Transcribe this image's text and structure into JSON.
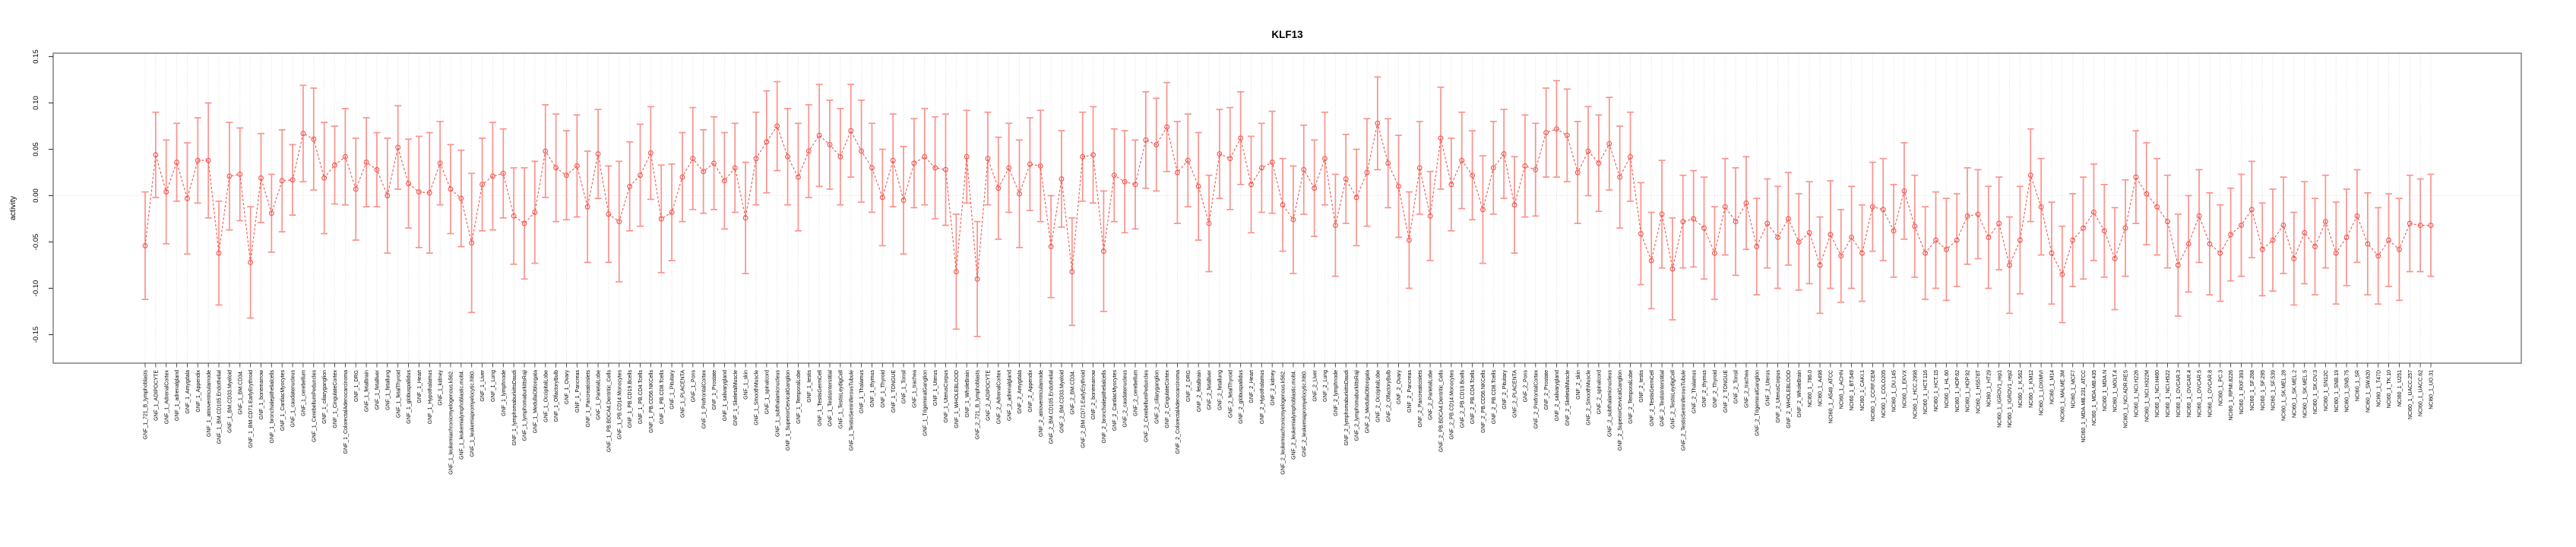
{
  "title": "KLF13",
  "colors": {
    "series": "#f0544c",
    "errorbar": "#fa938c",
    "grid": "#dcdcdc",
    "axis": "#808080",
    "tick": "#404040",
    "text": "#000000"
  },
  "chart_data": {
    "type": "line",
    "title": "KLF13",
    "xlabel": "",
    "ylabel": "activity",
    "ylim": [
      -0.185,
      0.153
    ],
    "ytick_labels": [
      "0.15",
      "0.10",
      "0.05",
      "0.00",
      "-0.05",
      "-0.10",
      "-0.15"
    ],
    "ytick_values": [
      0.15,
      0.1,
      0.05,
      0.0,
      -0.05,
      -0.1,
      -0.15
    ],
    "grid": "vertical dotted gridline at every category; horizontal dotted line at y=0",
    "legend_position": "none",
    "marker": "open-circle",
    "line_style": "dashed",
    "error_bars": true,
    "categories": [
      "GNF_1_721_B_lymphoblasts",
      "GNF_1_ADIPOCYTE",
      "GNF_1_AdrenalCortex",
      "GNF_1_adrenalgland",
      "GNF_1_Amygdala",
      "GNF_1_Appendix",
      "GNF_1_atrioventricularnode",
      "GNF_1_BM.CD105.Endothelial",
      "GNF_1_BM.CD33.Myeloid",
      "GNF_1_BM.CD34.",
      "GNF_1_BM.CD71.EarlyErythroid",
      "GNF_1_bonemarrow",
      "GNF_1_bronchialepithelialcells",
      "GNF_1_CardiacMyocytes",
      "GNF_1_caudatenucleus",
      "GNF_1_cerebellum",
      "GNF_1_CerebellumPeduncles",
      "GNF_1_ciliaryganglion",
      "GNF_1_CingulateCortex",
      "GNF_1_ColorectalAdenocarcinoma",
      "GNF_1_DRG",
      "GNF_1_fetalbrain",
      "GNF_1_fetalliver",
      "GNF_1_fetallung",
      "GNF_1_fetalThyroid",
      "GNF_1_globuspallidus",
      "GNF_1_Heart",
      "GNF_1_Hypothalamus",
      "GNF_1_kidney",
      "GNF_1_leukemiachronicmyelogenous.k562.",
      "GNF_1_leukemialymphoblastic.molt4.",
      "GNF_1_leukemiapromyelocytic.hl60.",
      "GNF_1_Liver",
      "GNF_1_Lung",
      "GNF_1_lymphnode",
      "GNF_1_lymphomaburkittsDaudi",
      "GNF_1_lymphomaburkittsRaji",
      "GNF_1_MedullaOblongata",
      "GNF_1_OccipitalLobe",
      "GNF_1_OlfactoryBulb",
      "GNF_1_Ovary",
      "GNF_1_Pancreas",
      "GNF_1_Pancreaticislets",
      "GNF_1_ParietalLobe",
      "GNF_1_PB.BDCA4.Dentritic_Cells",
      "GNF_1_PB.CD14.Monocytes",
      "GNF_1_PB.CD19.Bcells",
      "GNF_1_PB.CD4.Tcells",
      "GNF_1_PB.CD56.NKCells",
      "GNF_1_PB.CD8.Tcells",
      "GNF_1_Pituitary",
      "GNF_1_PLACENTA",
      "GNF_1_Pons",
      "GNF_1_PrefrontalCortex",
      "GNF_1_Prostate",
      "GNF_1_salivarygland",
      "GNF_1_SkeletalMuscle",
      "GNF_1_skin",
      "GNF_1_SmoothMuscle",
      "GNF_1_spinalcord",
      "GNF_1_subthalamicnucleus",
      "GNF_1_SuperiorCervicalGanglion",
      "GNF_1_TemporalLobe",
      "GNF_1_testis",
      "GNF_1_TestisGermCell",
      "GNF_1_TestisInterstitial",
      "GNF_1_TestisLeydigCell",
      "GNF_1_TestisSeminiferousTubule",
      "GNF_1_Thalamus",
      "GNF_1_thymus",
      "GNF_1_Thyroid",
      "GNF_1_TONGUE",
      "GNF_1_Tonsil",
      "GNF_1_trachea",
      "GNF_1_TrigeminalGanglion",
      "GNF_1_Uterus",
      "GNF_1_UterusCorpus",
      "GNF_1_WHOLEBLOOD",
      "GNF_1_WholeBrain",
      "GNF_2_721_B_lymphoblasts",
      "GNF_2_ADIPOCYTE",
      "GNF_2_AdrenalCortex",
      "GNF_2_adrenalgland",
      "GNF_2_Amygdala",
      "GNF_2_Appendix",
      "GNF_2_atrioventricularnode",
      "GNF_2_BM.CD105.Endothelial",
      "GNF_2_BM.CD33.Myeloid",
      "GNF_2_BM.CD34.",
      "GNF_2_BM.CD71.EarlyErythroid",
      "GNF_2_bonemarrow",
      "GNF_2_bronchialepithelialcells",
      "GNF_2_CardiacMyocytes",
      "GNF_2_caudatenucleus",
      "GNF_2_cerebellum",
      "GNF_2_CerebellumPeduncles",
      "GNF_2_ciliaryganglion",
      "GNF_2_CingulateCortex",
      "GNF_2_ColorectalAdenocarcinoma",
      "GNF_2_DRG",
      "GNF_2_fetalbrain",
      "GNF_2_fetalliver",
      "GNF_2_fetallung",
      "GNF_2_fetalThyroid",
      "GNF_2_globuspallidus",
      "GNF_2_Heart",
      "GNF_2_Hypothalamus",
      "GNF_2_kidney",
      "GNF_2_leukemiachronicmyelogenous.k562.",
      "GNF_2_leukemialymphoblastic.molt4.",
      "GNF_2_leukemiapromyelocytic.hl60.",
      "GNF_2_Liver",
      "GNF_2_Lung",
      "GNF_2_lymphnode",
      "GNF_2_lymphomaburkittsDaudi",
      "GNF_2_lymphomaburkittsRaji",
      "GNF_2_MedullaOblongata",
      "GNF_2_OccipitalLobe",
      "GNF_2_OlfactoryBulb",
      "GNF_2_Ovary",
      "GNF_2_Pancreas",
      "GNF_2_Pancreaticislets",
      "GNF_2_ParietalLobe",
      "GNF_2_PB.BDCA4.Dentritic_Cells",
      "GNF_2_PB.CD14.Monocytes",
      "GNF_2_PB.CD19.Bcells",
      "GNF_2_PB.CD4.Tcells",
      "GNF_2_PB.CD56.NKCells",
      "GNF_2_PB.CD8.Tcells",
      "GNF_2_Pituitary",
      "GNF_2_PLACENTA",
      "GNF_2_Pons",
      "GNF_2_PrefrontalCortex",
      "GNF_2_Prostate",
      "GNF_2_salivarygland",
      "GNF_2_SkeletalMuscle",
      "GNF_2_skin",
      "GNF_2_SmoothMuscle",
      "GNF_2_spinalcord",
      "GNF_2_subthalamicnucleus",
      "GNF_2_SuperiorCervicalGanglion",
      "GNF_2_TemporalLobe",
      "GNF_2_testis",
      "GNF_2_TestisGermCell",
      "GNF_2_TestisInterstitial",
      "GNF_2_TestisLeydigCell",
      "GNF_2_TestisSeminiferousTubule",
      "GNF_2_Thalamus",
      "GNF_2_thymus",
      "GNF_2_Thyroid",
      "GNF_2_TONGUE",
      "GNF_2_Tonsil",
      "GNF_2_trachea",
      "GNF_2_TrigeminalGanglion",
      "GNF_2_Uterus",
      "GNF_2_UterusCorpus",
      "GNF_2_WHOLEBLOOD",
      "GNF_2_WholeBrain",
      "NCI60_1_786.0",
      "NCI60_1_A498",
      "NCI60_1_A549_ATCC",
      "NCI60_1_ACHN",
      "NCI60_1_BT.549",
      "NCI60_1_CAKI.1",
      "NCI60_1_CCRF.CEM",
      "NCI60_1_COLO205",
      "NCI60_1_DU.145",
      "NCI60_1_EKVX",
      "NCI60_1_HCC.2998",
      "NCI60_1_HCT.116",
      "NCI60_1_HCT.15",
      "NCI60_1_HL.60",
      "NCI60_1_HOP.62",
      "NCI60_1_HOP.92",
      "NCI60_1_HS578T",
      "NCI60_1_HT29",
      "NCI60_1_IGROV1_rep1",
      "NCI60_1_IGROV1_rep2",
      "NCI60_1_K.562",
      "NCI60_1_KM12",
      "NCI60_1_LOXIMVI",
      "NCI60_1_M14",
      "NCI60_1_MALME.3M",
      "NCI60_1_MCF7",
      "NCI60_1_MDA.MB.231_ATCC",
      "NCI60_1_MDA.MB.435",
      "NCI60_1_MDA.N",
      "NCI60_1_MOLT.4",
      "NCI60_1_NCI.ADR.RES",
      "NCI60_1_NCI.H226",
      "NCI60_1_NCI.H322M",
      "NCI60_1_NCI.H460",
      "NCI60_1_NCI.H522",
      "NCI60_1_OVCAR.3",
      "NCI60_1_OVCAR.4",
      "NCI60_1_OVCAR.5",
      "NCI60_1_OVCAR.8",
      "NCI60_1_PC.3",
      "NCI60_1_RPMI.8226",
      "NCI60_1_RXF.393",
      "NCI60_1_SF.268",
      "NCI60_1_SF.295",
      "NCI60_1_SF.539",
      "NCI60_1_SK.MEL.28",
      "NCI60_1_SK.MEL.2",
      "NCI60_1_SK.MEL.5",
      "NCI60_1_SK.OV.3",
      "NCI60_1_SN12C",
      "NCI60_1_SNB.19",
      "NCI60_1_SNB.75",
      "NCI60_1_SR",
      "NCI60_1_SW.620",
      "NCI60_1_T47D",
      "NCI60_1_TK.10",
      "NCI60_1_U251",
      "NCI60_1_UACC.257",
      "NCI60_1_UACC.62",
      "NCI60_1_UO.31"
    ],
    "values": [
      -0.054,
      0.044,
      0.004,
      0.036,
      -0.003,
      0.038,
      0.038,
      -0.062,
      0.021,
      0.023,
      -0.072,
      0.019,
      -0.019,
      0.016,
      0.017,
      0.067,
      0.061,
      0.019,
      0.033,
      0.042,
      0.007,
      0.036,
      0.028,
      0.0,
      0.052,
      0.013,
      0.004,
      0.003,
      0.035,
      0.007,
      -0.003,
      -0.051,
      0.012,
      0.021,
      0.024,
      -0.022,
      -0.03,
      -0.018,
      0.048,
      0.03,
      0.022,
      0.032,
      -0.012,
      0.045,
      -0.02,
      -0.028,
      0.01,
      0.022,
      0.046,
      -0.025,
      -0.018,
      0.02,
      0.04,
      0.026,
      0.035,
      0.016,
      0.03,
      -0.024,
      0.04,
      0.058,
      0.075,
      0.042,
      0.02,
      0.048,
      0.065,
      0.055,
      0.042,
      0.07,
      0.048,
      0.03,
      -0.002,
      0.038,
      -0.005,
      0.035,
      0.042,
      0.03,
      0.028,
      -0.082,
      0.042,
      -0.09,
      0.04,
      0.008,
      0.03,
      0.002,
      0.034,
      0.032,
      -0.055,
      0.018,
      -0.082,
      0.042,
      0.044,
      -0.06,
      0.022,
      0.015,
      0.012,
      0.06,
      0.055,
      0.074,
      0.025,
      0.038,
      0.01,
      -0.03,
      0.045,
      0.04,
      0.062,
      0.012,
      0.03,
      0.036,
      -0.01,
      -0.026,
      0.028,
      0.008,
      0.04,
      -0.032,
      0.018,
      -0.002,
      0.025,
      0.078,
      0.035,
      0.01,
      -0.048,
      0.03,
      -0.022,
      0.062,
      0.012,
      0.038,
      0.022,
      -0.015,
      0.03,
      0.045,
      -0.01,
      0.032,
      0.028,
      0.068,
      0.072,
      0.065,
      0.025,
      0.048,
      0.035,
      0.056,
      0.02,
      0.042,
      -0.041,
      -0.07,
      -0.02,
      -0.079,
      -0.028,
      -0.025,
      -0.035,
      -0.062,
      -0.012,
      -0.028,
      -0.008,
      -0.055,
      -0.03,
      -0.045,
      -0.025,
      -0.05,
      -0.04,
      -0.075,
      -0.042,
      -0.065,
      -0.045,
      -0.062,
      -0.012,
      -0.015,
      -0.038,
      0.005,
      -0.033,
      -0.062,
      -0.048,
      -0.058,
      -0.048,
      -0.022,
      -0.02,
      -0.045,
      -0.03,
      -0.075,
      -0.048,
      0.022,
      -0.012,
      -0.062,
      -0.085,
      -0.048,
      -0.035,
      -0.018,
      -0.038,
      -0.068,
      -0.035,
      0.02,
      0.002,
      -0.012,
      -0.028,
      -0.075,
      -0.052,
      -0.022,
      -0.052,
      -0.062,
      -0.042,
      -0.032,
      -0.015,
      -0.058,
      -0.048,
      -0.032,
      -0.068,
      -0.04,
      -0.055,
      -0.028,
      -0.062,
      -0.045,
      -0.022,
      -0.052,
      -0.065,
      -0.048,
      -0.058,
      -0.03,
      -0.032,
      -0.032
    ],
    "errors": [
      0.058,
      0.046,
      0.056,
      0.042,
      0.06,
      0.046,
      0.062,
      0.056,
      0.058,
      0.05,
      0.06,
      0.048,
      0.042,
      0.055,
      0.038,
      0.052,
      0.055,
      0.06,
      0.042,
      0.052,
      0.055,
      0.048,
      0.04,
      0.062,
      0.045,
      0.048,
      0.06,
      0.065,
      0.045,
      0.048,
      0.052,
      0.075,
      0.05,
      0.058,
      0.048,
      0.052,
      0.06,
      0.055,
      0.05,
      0.058,
      0.048,
      0.055,
      0.06,
      0.048,
      0.052,
      0.065,
      0.048,
      0.055,
      0.05,
      0.058,
      0.052,
      0.048,
      0.055,
      0.045,
      0.05,
      0.052,
      0.048,
      0.06,
      0.05,
      0.055,
      0.048,
      0.052,
      0.058,
      0.05,
      0.055,
      0.048,
      0.052,
      0.05,
      0.055,
      0.048,
      0.052,
      0.05,
      0.058,
      0.048,
      0.052,
      0.055,
      0.06,
      0.062,
      0.05,
      0.062,
      0.05,
      0.055,
      0.048,
      0.058,
      0.05,
      0.06,
      0.055,
      0.052,
      0.058,
      0.048,
      0.052,
      0.065,
      0.05,
      0.055,
      0.048,
      0.052,
      0.05,
      0.048,
      0.055,
      0.05,
      0.058,
      0.052,
      0.048,
      0.055,
      0.05,
      0.052,
      0.048,
      0.055,
      0.05,
      0.058,
      0.048,
      0.052,
      0.05,
      0.055,
      0.048,
      0.052,
      0.058,
      0.05,
      0.048,
      0.055,
      0.052,
      0.05,
      0.048,
      0.055,
      0.05,
      0.052,
      0.048,
      0.058,
      0.05,
      0.048,
      0.052,
      0.055,
      0.05,
      0.048,
      0.052,
      0.05,
      0.055,
      0.048,
      0.052,
      0.05,
      0.055,
      0.048,
      0.055,
      0.052,
      0.058,
      0.055,
      0.05,
      0.052,
      0.055,
      0.05,
      0.052,
      0.058,
      0.05,
      0.052,
      0.048,
      0.055,
      0.05,
      0.052,
      0.055,
      0.052,
      0.058,
      0.05,
      0.055,
      0.052,
      0.048,
      0.055,
      0.05,
      0.052,
      0.055,
      0.05,
      0.052,
      0.055,
      0.05,
      0.052,
      0.048,
      0.055,
      0.05,
      0.052,
      0.058,
      0.05,
      0.052,
      0.055,
      0.052,
      0.05,
      0.055,
      0.052,
      0.05,
      0.055,
      0.052,
      0.05,
      0.055,
      0.052,
      0.05,
      0.055,
      0.052,
      0.05,
      0.055,
      0.052,
      0.05,
      0.055,
      0.052,
      0.05,
      0.055,
      0.052,
      0.05,
      0.055,
      0.052,
      0.05,
      0.055,
      0.052,
      0.05,
      0.055,
      0.052,
      0.05,
      0.055,
      0.052,
      0.05,
      0.055
    ]
  }
}
